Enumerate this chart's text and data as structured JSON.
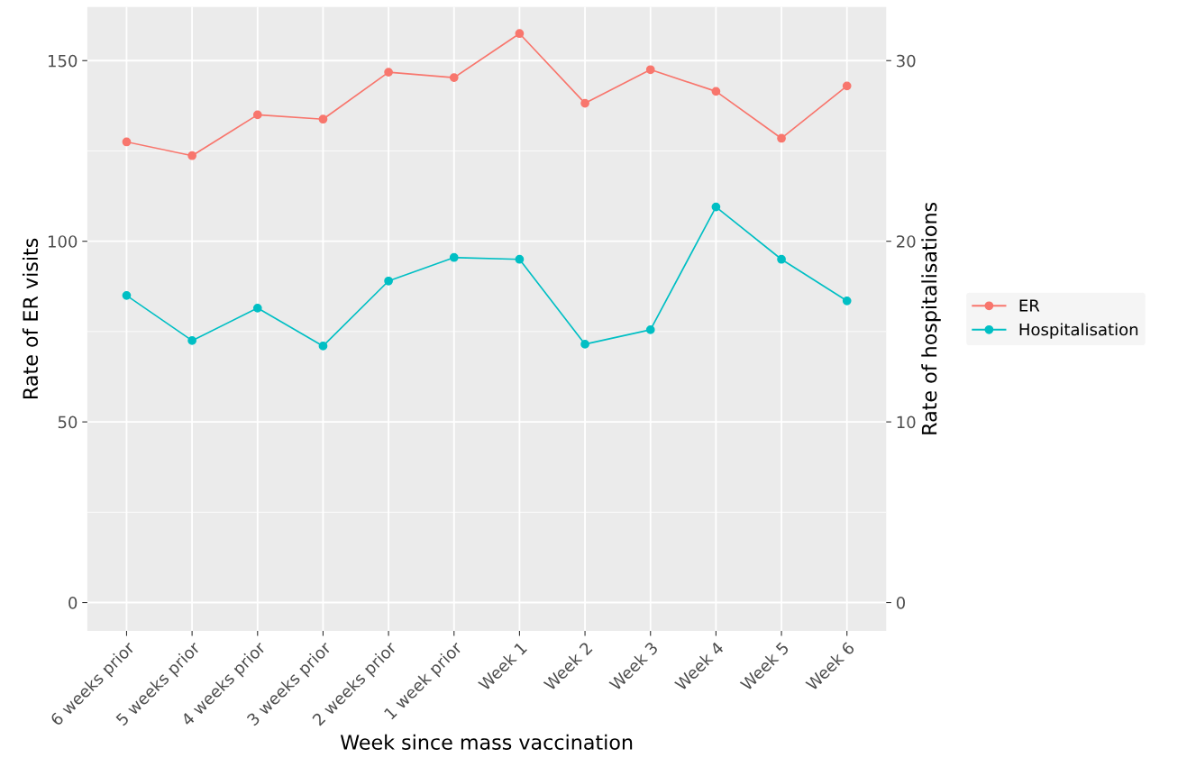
{
  "chart_data": {
    "type": "line",
    "xlabel": "Week since mass vaccination",
    "ylabel": "Rate of ER visits",
    "y2label": "Rate of hospitalisations",
    "categories": [
      "6 weeks prior",
      "5 weeks prior",
      "4 weeks prior",
      "3 weeks prior",
      "2 weeks prior",
      "1 week prior",
      "Week 1",
      "Week 2",
      "Week 3",
      "Week 4",
      "Week 5",
      "Week 6"
    ],
    "series": [
      {
        "name": "ER",
        "color": "#f8766d",
        "values": [
          127.5,
          123.7,
          135,
          133.8,
          146.8,
          145.3,
          157.5,
          138.2,
          147.5,
          141.5,
          128.5,
          143
        ]
      },
      {
        "name": "Hospitalisation",
        "color": "#00bfc4",
        "axis": "y2",
        "values": [
          17.0,
          14.5,
          16.3,
          14.2,
          17.8,
          19.1,
          19.0,
          14.3,
          15.1,
          21.9,
          19.0,
          16.7
        ]
      }
    ],
    "ylim": [
      -7.85,
      164.85
    ],
    "yticks": [
      0,
      50,
      100,
      150
    ],
    "y2lim": [
      -1.57,
      32.97
    ],
    "y2ticks": [
      0,
      10,
      20,
      30
    ],
    "grid": true,
    "legend": "right",
    "marker": "circle",
    "line_style": "solid"
  }
}
